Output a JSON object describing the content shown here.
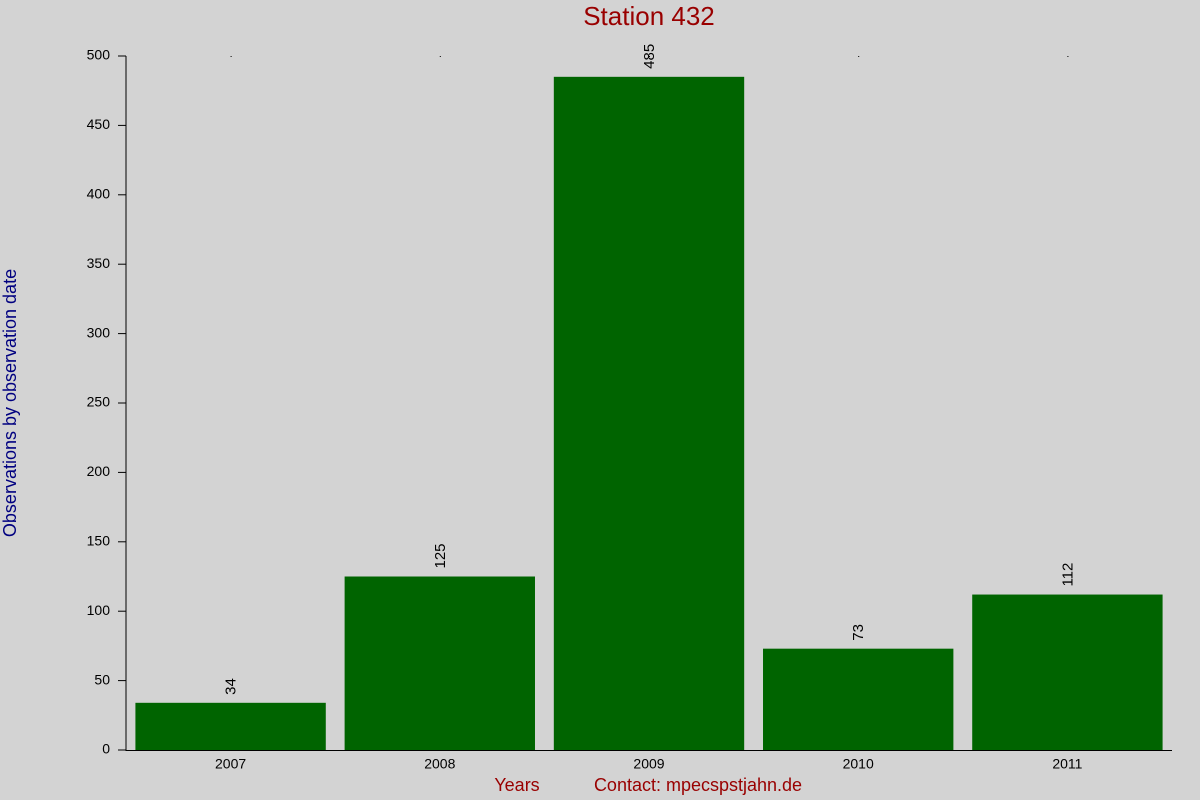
{
  "chart_data": {
    "type": "bar",
    "title": "Station 432",
    "x_label": "Years",
    "annotation": "Contact: mpecspstjahn.de",
    "y_label": "Observations by observation date",
    "categories": [
      "2007",
      "2008",
      "2009",
      "2010",
      "2011"
    ],
    "values": [
      34,
      125,
      485,
      73,
      112
    ],
    "color": "#006400",
    "ylim": [
      0,
      500
    ],
    "yticks": [
      0,
      50,
      100,
      150,
      200,
      250,
      300,
      350,
      400,
      450,
      500
    ],
    "grid": false
  }
}
